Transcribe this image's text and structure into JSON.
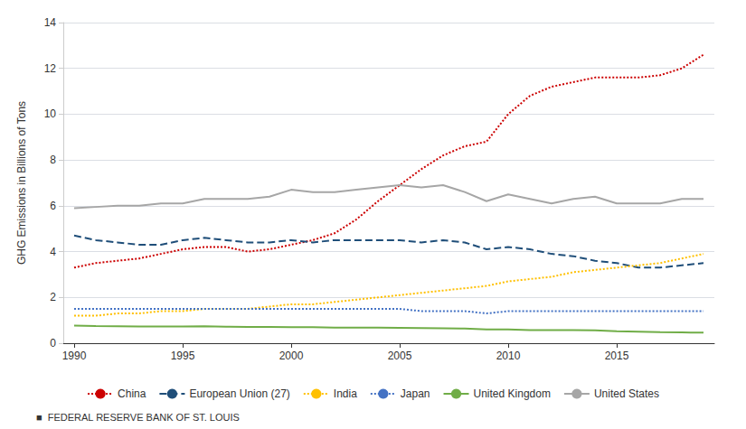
{
  "chart_data": {
    "type": "line",
    "ylabel": "GHG Emissions in Billions of Tons",
    "x": [
      1990,
      1991,
      1992,
      1993,
      1994,
      1995,
      1996,
      1997,
      1998,
      1999,
      2000,
      2001,
      2002,
      2003,
      2004,
      2005,
      2006,
      2007,
      2008,
      2009,
      2010,
      2011,
      2012,
      2013,
      2014,
      2015,
      2016,
      2017,
      2018,
      2019
    ],
    "series": [
      {
        "name": "China",
        "color": "#cc0000",
        "line_style": "dotted",
        "values": [
          3.3,
          3.5,
          3.6,
          3.7,
          3.9,
          4.1,
          4.2,
          4.2,
          4.0,
          4.1,
          4.3,
          4.5,
          4.8,
          5.4,
          6.2,
          6.9,
          7.6,
          8.2,
          8.6,
          8.8,
          10.0,
          10.8,
          11.2,
          11.4,
          11.6,
          11.6,
          11.6,
          11.7,
          12.0,
          12.6
        ]
      },
      {
        "name": "European Union (27)",
        "color": "#1f4e79",
        "line_style": "dashed",
        "values": [
          4.7,
          4.5,
          4.4,
          4.3,
          4.3,
          4.5,
          4.6,
          4.5,
          4.4,
          4.4,
          4.5,
          4.4,
          4.5,
          4.5,
          4.5,
          4.5,
          4.4,
          4.5,
          4.4,
          4.1,
          4.2,
          4.1,
          3.9,
          3.8,
          3.6,
          3.5,
          3.3,
          3.3,
          3.4,
          3.5
        ]
      },
      {
        "name": "India",
        "color": "#ffc000",
        "line_style": "dotted",
        "values": [
          1.2,
          1.2,
          1.3,
          1.3,
          1.4,
          1.4,
          1.5,
          1.5,
          1.5,
          1.6,
          1.7,
          1.7,
          1.8,
          1.9,
          2.0,
          2.1,
          2.2,
          2.3,
          2.4,
          2.5,
          2.7,
          2.8,
          2.9,
          3.1,
          3.2,
          3.3,
          3.4,
          3.5,
          3.7,
          3.9
        ]
      },
      {
        "name": "Japan",
        "color": "#4472c4",
        "line_style": "dotted",
        "values": [
          1.5,
          1.5,
          1.5,
          1.5,
          1.5,
          1.5,
          1.5,
          1.5,
          1.5,
          1.5,
          1.5,
          1.5,
          1.5,
          1.5,
          1.5,
          1.5,
          1.4,
          1.4,
          1.4,
          1.3,
          1.4,
          1.4,
          1.4,
          1.4,
          1.4,
          1.4,
          1.4,
          1.4,
          1.4,
          1.4
        ]
      },
      {
        "name": "United Kingdom",
        "color": "#70ad47",
        "line_style": "solid",
        "values": [
          0.77,
          0.75,
          0.74,
          0.73,
          0.73,
          0.73,
          0.74,
          0.72,
          0.71,
          0.71,
          0.7,
          0.7,
          0.68,
          0.68,
          0.68,
          0.67,
          0.66,
          0.65,
          0.64,
          0.6,
          0.6,
          0.57,
          0.57,
          0.57,
          0.56,
          0.52,
          0.5,
          0.48,
          0.47,
          0.46
        ]
      },
      {
        "name": "United States",
        "color": "#a6a6a6",
        "line_style": "solid",
        "values": [
          5.9,
          5.95,
          6.0,
          6.0,
          6.1,
          6.1,
          6.3,
          6.3,
          6.3,
          6.4,
          6.7,
          6.6,
          6.6,
          6.7,
          6.8,
          6.9,
          6.8,
          6.9,
          6.6,
          6.2,
          6.5,
          6.3,
          6.1,
          6.3,
          6.4,
          6.1,
          6.1,
          6.1,
          6.3,
          6.3
        ]
      }
    ],
    "xlim": [
      1989.5,
      2019.5
    ],
    "xticks": [
      1990,
      1995,
      2000,
      2005,
      2010,
      2015
    ],
    "ylim": [
      0,
      14
    ],
    "yticks": [
      0,
      2,
      4,
      6,
      8,
      10,
      12,
      14
    ],
    "grid": true,
    "legend": "bottom",
    "annotations": [
      "■  FEDERAL RESERVE BANK OF ST. LOUIS"
    ]
  }
}
